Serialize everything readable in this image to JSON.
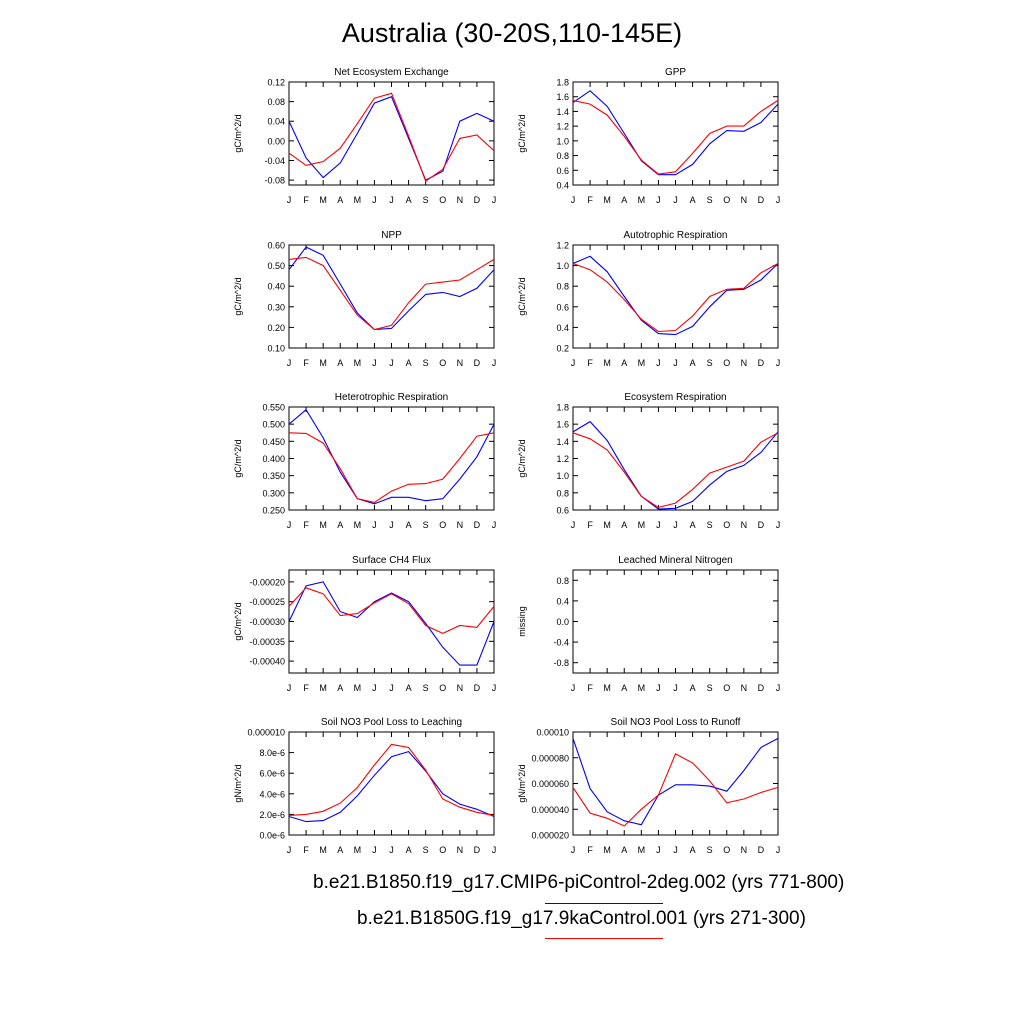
{
  "title": "Australia (30-20S,110-145E)",
  "legend": [
    {
      "label": "b.e21.B1850.f19_g17.CMIP6-piControl-2deg.002 (yrs 771-800)",
      "color": "#0000ff"
    },
    {
      "label": "b.e21.B1850G.f19_g17.9kaControl.001 (yrs 271-300)",
      "color": "#ff0000"
    }
  ],
  "chart_data": [
    {
      "type": "line",
      "title": "Net Ecosystem Exchange",
      "ylabel": "gC/m^2/d",
      "x": [
        "J",
        "F",
        "M",
        "A",
        "M",
        "J",
        "J",
        "A",
        "S",
        "O",
        "N",
        "D",
        "J"
      ],
      "ylim": [
        -0.09,
        0.12
      ],
      "yticks": [
        -0.08,
        -0.04,
        0.0,
        0.04,
        0.08,
        0.12
      ],
      "ytick_labels": [
        "-0.08",
        "-0.04",
        "0.00",
        "0.04",
        "0.08",
        "0.12"
      ],
      "series": [
        {
          "color": "#0000ff",
          "values": [
            0.04,
            -0.035,
            -0.075,
            -0.045,
            0.015,
            0.077,
            0.09,
            0.005,
            -0.08,
            -0.062,
            0.04,
            0.056,
            0.04
          ]
        },
        {
          "color": "#ff0000",
          "values": [
            -0.025,
            -0.05,
            -0.042,
            -0.015,
            0.035,
            0.087,
            0.097,
            0.01,
            -0.082,
            -0.058,
            0.005,
            0.012,
            -0.02
          ]
        }
      ]
    },
    {
      "type": "line",
      "title": "GPP",
      "ylabel": "gC/m^2/d",
      "x": [
        "J",
        "F",
        "M",
        "A",
        "M",
        "J",
        "J",
        "A",
        "S",
        "O",
        "N",
        "D",
        "J"
      ],
      "ylim": [
        0.4,
        1.8
      ],
      "yticks": [
        0.4,
        0.6,
        0.8,
        1.0,
        1.2,
        1.4,
        1.6,
        1.8
      ],
      "ytick_labels": [
        "0.4",
        "0.6",
        "0.8",
        "1.0",
        "1.2",
        "1.4",
        "1.6",
        "1.8"
      ],
      "series": [
        {
          "color": "#0000ff",
          "values": [
            1.52,
            1.68,
            1.47,
            1.1,
            0.73,
            0.54,
            0.54,
            0.68,
            0.96,
            1.14,
            1.13,
            1.25,
            1.5
          ]
        },
        {
          "color": "#ff0000",
          "values": [
            1.55,
            1.5,
            1.35,
            1.06,
            0.74,
            0.55,
            0.58,
            0.83,
            1.1,
            1.2,
            1.2,
            1.4,
            1.55
          ]
        }
      ]
    },
    {
      "type": "line",
      "title": "NPP",
      "ylabel": "gC/m^2/d",
      "x": [
        "J",
        "F",
        "M",
        "A",
        "M",
        "J",
        "J",
        "A",
        "S",
        "O",
        "N",
        "D",
        "J"
      ],
      "ylim": [
        0.1,
        0.6
      ],
      "yticks": [
        0.1,
        0.2,
        0.3,
        0.4,
        0.5,
        0.6
      ],
      "ytick_labels": [
        "0.10",
        "0.20",
        "0.30",
        "0.40",
        "0.50",
        "0.60"
      ],
      "series": [
        {
          "color": "#0000ff",
          "values": [
            0.48,
            0.59,
            0.55,
            0.41,
            0.27,
            0.19,
            0.195,
            0.28,
            0.36,
            0.37,
            0.35,
            0.39,
            0.48
          ]
        },
        {
          "color": "#ff0000",
          "values": [
            0.53,
            0.54,
            0.5,
            0.38,
            0.26,
            0.19,
            0.21,
            0.32,
            0.41,
            0.42,
            0.43,
            0.48,
            0.53
          ]
        }
      ]
    },
    {
      "type": "line",
      "title": "Autotrophic Respiration",
      "ylabel": "gC/m^2/d",
      "x": [
        "J",
        "F",
        "M",
        "A",
        "M",
        "J",
        "J",
        "A",
        "S",
        "O",
        "N",
        "D",
        "J"
      ],
      "ylim": [
        0.2,
        1.2
      ],
      "yticks": [
        0.2,
        0.4,
        0.6,
        0.8,
        1.0,
        1.2
      ],
      "ytick_labels": [
        "0.2",
        "0.4",
        "0.6",
        "0.8",
        "1.0",
        "1.2"
      ],
      "series": [
        {
          "color": "#0000ff",
          "values": [
            1.02,
            1.09,
            0.94,
            0.7,
            0.47,
            0.34,
            0.33,
            0.41,
            0.6,
            0.76,
            0.77,
            0.86,
            1.02
          ]
        },
        {
          "color": "#ff0000",
          "values": [
            1.02,
            0.96,
            0.84,
            0.67,
            0.48,
            0.36,
            0.37,
            0.51,
            0.7,
            0.77,
            0.78,
            0.93,
            1.02
          ]
        }
      ]
    },
    {
      "type": "line",
      "title": "Heterotrophic Respiration",
      "ylabel": "gC/m^2/d",
      "x": [
        "J",
        "F",
        "M",
        "A",
        "M",
        "J",
        "J",
        "A",
        "S",
        "O",
        "N",
        "D",
        "J"
      ],
      "ylim": [
        0.25,
        0.55
      ],
      "yticks": [
        0.25,
        0.3,
        0.35,
        0.4,
        0.45,
        0.5,
        0.55
      ],
      "ytick_labels": [
        "0.250",
        "0.300",
        "0.350",
        "0.400",
        "0.450",
        "0.500",
        "0.550"
      ],
      "series": [
        {
          "color": "#0000ff",
          "values": [
            0.5,
            0.542,
            0.46,
            0.36,
            0.283,
            0.268,
            0.287,
            0.287,
            0.277,
            0.283,
            0.34,
            0.405,
            0.5
          ]
        },
        {
          "color": "#ff0000",
          "values": [
            0.475,
            0.473,
            0.445,
            0.37,
            0.283,
            0.272,
            0.305,
            0.325,
            0.327,
            0.34,
            0.4,
            0.465,
            0.475
          ]
        }
      ]
    },
    {
      "type": "line",
      "title": "Ecosystem Respiration",
      "ylabel": "gC/m^2/d",
      "x": [
        "J",
        "F",
        "M",
        "A",
        "M",
        "J",
        "J",
        "A",
        "S",
        "O",
        "N",
        "D",
        "J"
      ],
      "ylim": [
        0.6,
        1.8
      ],
      "yticks": [
        0.6,
        0.8,
        1.0,
        1.2,
        1.4,
        1.6,
        1.8
      ],
      "ytick_labels": [
        "0.6",
        "0.8",
        "1.0",
        "1.2",
        "1.4",
        "1.6",
        "1.8"
      ],
      "series": [
        {
          "color": "#0000ff",
          "values": [
            1.51,
            1.63,
            1.41,
            1.07,
            0.76,
            0.61,
            0.62,
            0.7,
            0.89,
            1.05,
            1.12,
            1.27,
            1.51
          ]
        },
        {
          "color": "#ff0000",
          "values": [
            1.5,
            1.43,
            1.3,
            1.04,
            0.76,
            0.63,
            0.68,
            0.84,
            1.03,
            1.1,
            1.17,
            1.39,
            1.5
          ]
        }
      ]
    },
    {
      "type": "line",
      "title": "Surface CH4 Flux",
      "ylabel": "gC/m^2/d",
      "x": [
        "J",
        "F",
        "M",
        "A",
        "M",
        "J",
        "J",
        "A",
        "S",
        "O",
        "N",
        "D",
        "J"
      ],
      "ylim": [
        -0.00043,
        -0.00017
      ],
      "yticks": [
        -0.0004,
        -0.00035,
        -0.0003,
        -0.00025,
        -0.0002
      ],
      "ytick_labels": [
        "-0.00040",
        "-0.00035",
        "-0.00030",
        "-0.00025",
        "-0.00020"
      ],
      "series": [
        {
          "color": "#0000ff",
          "values": [
            -0.0003,
            -0.00021,
            -0.0002,
            -0.000275,
            -0.00029,
            -0.00025,
            -0.000228,
            -0.00025,
            -0.000305,
            -0.000365,
            -0.00041,
            -0.00041,
            -0.0003
          ]
        },
        {
          "color": "#ff0000",
          "values": [
            -0.000262,
            -0.000215,
            -0.00023,
            -0.000285,
            -0.00028,
            -0.000253,
            -0.00023,
            -0.000255,
            -0.00031,
            -0.00033,
            -0.00031,
            -0.000315,
            -0.000262
          ]
        }
      ]
    },
    {
      "type": "line",
      "title": "Leached Mineral Nitrogen",
      "ylabel": "missing",
      "x": [
        "J",
        "F",
        "M",
        "A",
        "M",
        "J",
        "J",
        "A",
        "S",
        "O",
        "N",
        "D",
        "J"
      ],
      "ylim": [
        -1.0,
        1.0
      ],
      "yticks": [
        -0.8,
        -0.4,
        0.0,
        0.4,
        0.8
      ],
      "ytick_labels": [
        "-0.8",
        "-0.4",
        "0.0",
        "0.4",
        "0.8"
      ],
      "series": []
    },
    {
      "type": "line",
      "title": "Soil NO3 Pool Loss to Leaching",
      "ylabel": "gN/m^2/d",
      "x": [
        "J",
        "F",
        "M",
        "A",
        "M",
        "J",
        "J",
        "A",
        "S",
        "O",
        "N",
        "D",
        "J"
      ],
      "ylim": [
        0.0,
        1e-05
      ],
      "yticks": [
        0.0,
        2e-06,
        4e-06,
        6e-06,
        8e-06,
        1e-05
      ],
      "ytick_labels": [
        "0.0e-6",
        "2.0e-6",
        "4.0e-6",
        "6.0e-6",
        "8.0e-6",
        "0.000010"
      ],
      "series": [
        {
          "color": "#0000ff",
          "values": [
            1.8e-06,
            1.3e-06,
            1.4e-06,
            2.2e-06,
            3.8e-06,
            5.8e-06,
            7.6e-06,
            8.1e-06,
            6.2e-06,
            4e-06,
            3e-06,
            2.5e-06,
            1.8e-06
          ]
        },
        {
          "color": "#ff0000",
          "values": [
            1.9e-06,
            2e-06,
            2.3e-06,
            3.1e-06,
            4.6e-06,
            6.8e-06,
            8.8e-06,
            8.5e-06,
            6.3e-06,
            3.5e-06,
            2.7e-06,
            2.2e-06,
            1.9e-06
          ]
        }
      ]
    },
    {
      "type": "line",
      "title": "Soil NO3 Pool Loss to Runoff",
      "ylabel": "gN/m^2/d",
      "x": [
        "J",
        "F",
        "M",
        "A",
        "M",
        "J",
        "J",
        "A",
        "S",
        "O",
        "N",
        "D",
        "J"
      ],
      "ylim": [
        2e-05,
        0.0001
      ],
      "yticks": [
        2e-05,
        4e-05,
        6e-05,
        8e-05,
        0.0001
      ],
      "ytick_labels": [
        "0.000020",
        "0.000040",
        "0.000060",
        "0.000080",
        "0.00010"
      ],
      "series": [
        {
          "color": "#0000ff",
          "values": [
            9.5e-05,
            5.6e-05,
            3.8e-05,
            3.1e-05,
            2.8e-05,
            5.1e-05,
            5.9e-05,
            5.9e-05,
            5.8e-05,
            5.4e-05,
            7e-05,
            8.8e-05,
            9.5e-05
          ]
        },
        {
          "color": "#ff0000",
          "values": [
            5.7e-05,
            3.7e-05,
            3.3e-05,
            2.7e-05,
            4e-05,
            5.1e-05,
            8.3e-05,
            7.6e-05,
            6.2e-05,
            4.5e-05,
            4.8e-05,
            5.3e-05,
            5.7e-05
          ]
        }
      ]
    }
  ]
}
